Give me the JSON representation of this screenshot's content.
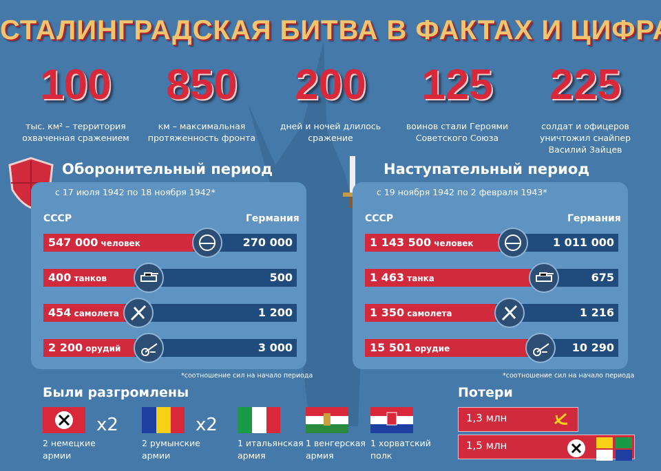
{
  "title": "СТАЛИНГРАДСКАЯ БИТВА В ФАКТАХ И ЦИФРАХ",
  "facts": [
    {
      "number": "100",
      "lines": [
        "тыс. км² – территория",
        "охваченная сражением"
      ]
    },
    {
      "number": "850",
      "lines": [
        "км – максимальная",
        "протяженность фронта"
      ]
    },
    {
      "number": "200",
      "lines": [
        "дней и ночей длилось",
        "сражение"
      ]
    },
    {
      "number": "125",
      "lines": [
        "воинов стали Героями",
        "Советского Союза"
      ]
    },
    {
      "number": "225",
      "lines": [
        "солдат и офицеров",
        "уничтожил снайпер",
        "Василий Зайцев"
      ]
    }
  ],
  "periods": [
    {
      "title": "Оборонительный период",
      "dates": "с 17 июля 1942 по 18 ноября 1942*",
      "left": "СССР",
      "right": "Германия",
      "rows": [
        {
          "ussr": "547 000",
          "unit": "человек",
          "germany": "270 000"
        },
        {
          "ussr": "400",
          "unit": "танков",
          "germany": "500"
        },
        {
          "ussr": "454",
          "unit": "самолета",
          "germany": "1 200"
        },
        {
          "ussr": "2 200",
          "unit": "орудий",
          "germany": "3 000"
        }
      ],
      "note": "*соотношение сил на начало периода"
    },
    {
      "title": "Наступательный период",
      "dates": "с 19 ноября 1942 по 2 февраля 1943*",
      "left": "СССР",
      "right": "Германия",
      "rows": [
        {
          "ussr": "1 143 500",
          "unit": "человек",
          "germany": "1 011 000"
        },
        {
          "ussr": "1 463",
          "unit": "танка",
          "germany": "675"
        },
        {
          "ussr": "1 350",
          "unit": "самолета",
          "germany": "1 216"
        },
        {
          "ussr": "15 501",
          "unit": "орудие",
          "germany": "10 290"
        }
      ],
      "note": "*соотношение сил на начало периода"
    }
  ],
  "defeated": {
    "title": "Были разгромлены",
    "items": [
      {
        "multiplier": "x2",
        "lines": [
          "2 немецкие",
          "армии"
        ]
      },
      {
        "multiplier": "x2",
        "lines": [
          "2 румынские",
          "армии"
        ]
      },
      {
        "lines": [
          "1 итальянская",
          "армия"
        ]
      },
      {
        "lines": [
          "1 венгерская",
          "армия"
        ]
      },
      {
        "lines": [
          "1 хорватский",
          "полк"
        ]
      }
    ]
  },
  "losses": {
    "title": "Потери",
    "items": [
      "1,3 млн",
      "1,5 млн"
    ]
  }
}
